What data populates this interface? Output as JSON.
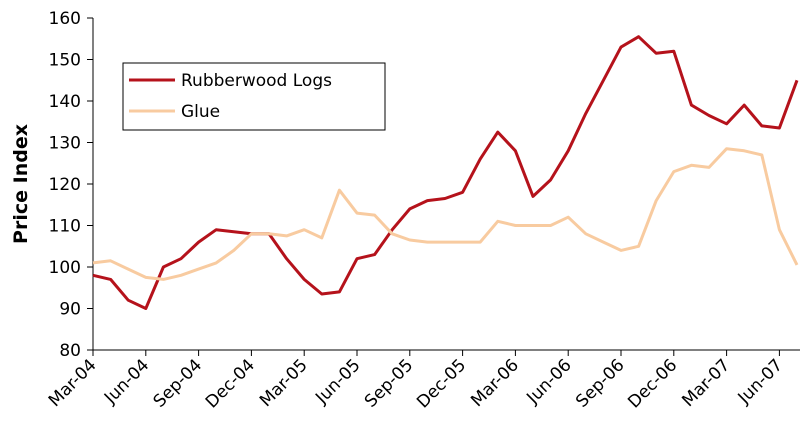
{
  "chart_data": {
    "type": "line",
    "y_label": "Price Index",
    "categories": [
      "Mar-04",
      null,
      null,
      "Jun-04",
      null,
      null,
      "Sep-04",
      null,
      null,
      "Dec-04",
      null,
      null,
      "Mar-05",
      null,
      null,
      "Jun-05",
      null,
      null,
      "Sep-05",
      null,
      null,
      "Dec-05",
      null,
      null,
      "Mar-06",
      null,
      null,
      "Jun-06",
      null,
      null,
      "Sep-06",
      null,
      null,
      "Dec-06",
      null,
      null,
      "Mar-07",
      null,
      null,
      "Jun-07",
      null
    ],
    "series": [
      {
        "name": "Rubberwood Logs",
        "color": "#b5121b",
        "values": [
          98,
          97,
          92,
          90,
          100,
          102,
          106,
          109,
          108.5,
          108,
          108,
          102,
          97,
          93.5,
          94,
          102,
          103,
          109,
          114,
          116,
          116.5,
          118,
          126,
          132.5,
          128,
          117,
          121,
          128,
          137,
          145,
          153,
          155.5,
          151.5,
          152,
          139,
          136.5,
          134.5,
          139,
          134,
          133.5,
          145
        ]
      },
      {
        "name": "Glue",
        "color": "#f8cba0",
        "values": [
          101,
          101.5,
          99.5,
          97.5,
          97,
          98,
          99.5,
          101,
          104,
          108,
          108,
          107.5,
          109,
          107,
          118.5,
          113,
          112.5,
          108,
          106.5,
          106,
          106,
          106,
          106,
          111,
          110,
          110,
          110,
          112,
          108,
          106,
          104,
          105,
          116,
          123,
          124.5,
          124,
          128.5,
          128,
          127,
          109,
          100.5
        ]
      }
    ],
    "ylim": [
      80,
      160
    ],
    "yticks": [
      80,
      90,
      100,
      110,
      120,
      130,
      140,
      150,
      160
    ],
    "grid": false,
    "legend": "upper left"
  }
}
